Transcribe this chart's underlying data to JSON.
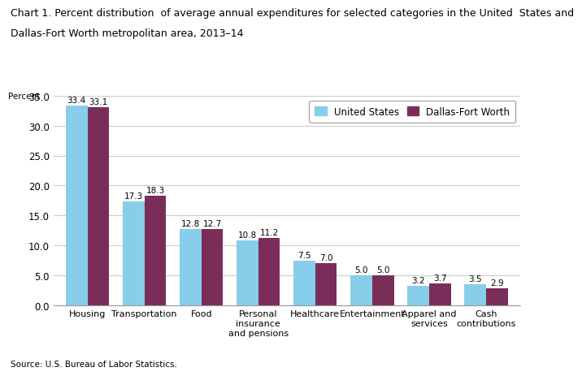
{
  "title_line1": "Chart 1. Percent distribution  of average annual expenditures for selected categories in the United  States and",
  "title_line2": "Dallas-Fort Worth metropolitan area, 2013–14",
  "ylabel": "Percent",
  "source": "Source: U.S. Bureau of Labor Statistics.",
  "categories": [
    "Housing",
    "Transportation",
    "Food",
    "Personal\ninsurance\nand pensions",
    "Healthcare",
    "Entertainment",
    "Apparel and\nservices",
    "Cash\ncontributions"
  ],
  "us_values": [
    33.4,
    17.3,
    12.8,
    10.8,
    7.5,
    5.0,
    3.2,
    3.5
  ],
  "dfw_values": [
    33.1,
    18.3,
    12.7,
    11.2,
    7.0,
    5.0,
    3.7,
    2.9
  ],
  "us_color": "#87CEEB",
  "dfw_color": "#7B2D5A",
  "us_label": "United States",
  "dfw_label": "Dallas-Fort Worth",
  "ylim": [
    0,
    35.0
  ],
  "yticks": [
    0.0,
    5.0,
    10.0,
    15.0,
    20.0,
    25.0,
    30.0,
    35.0
  ],
  "bar_width": 0.38,
  "title_fontsize": 9.0,
  "label_fontsize": 8.0,
  "tick_fontsize": 8.5,
  "value_fontsize": 7.5,
  "legend_fontsize": 8.5,
  "ylabel_fontsize": 7.5,
  "source_fontsize": 7.5,
  "background_color": "#ffffff",
  "grid_color": "#cccccc"
}
